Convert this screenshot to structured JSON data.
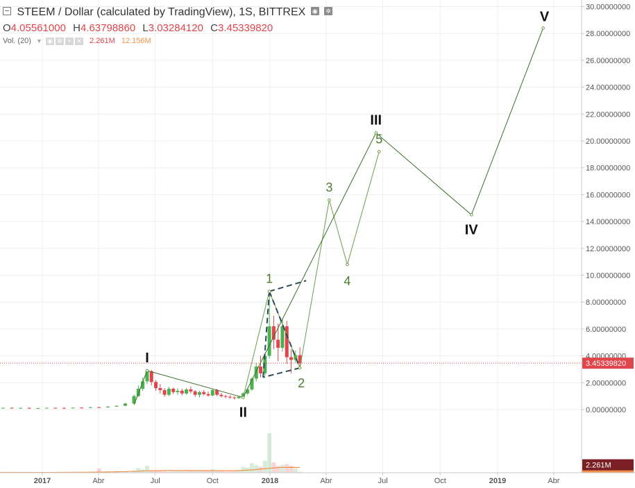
{
  "header": {
    "title": "STEEM / Dollar (calculated by TradingView), 1S, BITTREX",
    "ohlc": [
      {
        "label": "O",
        "value": "4.05561000"
      },
      {
        "label": "H",
        "value": "4.63798860"
      },
      {
        "label": "L",
        "value": "3.03284120"
      },
      {
        "label": "C",
        "value": "3.45339820"
      }
    ],
    "volume_indicator": {
      "label": "Vol. (20)",
      "value": "2.261M",
      "ma_value": "12.156M"
    }
  },
  "colors": {
    "up": "#4caf50",
    "down": "#e0454c",
    "wave_line": "#3c6e28",
    "wave_label_minor": "#4a7c2c",
    "wave_label_major": "#111111",
    "volume_ma": "#f0914a",
    "price_line": "#e0454c"
  },
  "chart_data": {
    "type": "candlestick",
    "title": "STEEM / Dollar (calculated by TradingView), 1S, BITTREX",
    "y_axis": {
      "min": -2.5,
      "max": 30,
      "ticks": [
        "0.00000000",
        "2.00000000",
        "4.00000000",
        "6.00000000",
        "8.00000000",
        "10.00000000",
        "12.00000000",
        "14.00000000",
        "16.00000000",
        "18.00000000",
        "20.00000000",
        "22.00000000",
        "24.00000000",
        "26.00000000",
        "28.00000000",
        "30.00000000"
      ]
    },
    "x_axis": {
      "ticks": [
        {
          "label": "2017",
          "date": "2017-01-01"
        },
        {
          "label": "Abr",
          "date": "2017-04-01"
        },
        {
          "label": "Jul",
          "date": "2017-07-01"
        },
        {
          "label": "Oct",
          "date": "2017-10-01"
        },
        {
          "label": "2018",
          "date": "2018-01-01"
        },
        {
          "label": "Abr",
          "date": "2018-04-01"
        },
        {
          "label": "Jul",
          "date": "2018-07-01"
        },
        {
          "label": "Oct",
          "date": "2018-10-01"
        },
        {
          "label": "2019",
          "date": "2019-01-01"
        },
        {
          "label": "Abr",
          "date": "2019-04-01"
        }
      ]
    },
    "last_price": {
      "value": 3.4533982,
      "label": "3.45339820"
    },
    "volume_badges": {
      "ma": "12.156M",
      "last": "2.261M"
    },
    "candles": [
      {
        "date": "2016-10-02",
        "o": 0.1,
        "h": 0.14,
        "l": 0.08,
        "c": 0.12
      },
      {
        "date": "2016-10-16",
        "o": 0.12,
        "h": 0.15,
        "l": 0.09,
        "c": 0.1
      },
      {
        "date": "2016-10-30",
        "o": 0.1,
        "h": 0.14,
        "l": 0.08,
        "c": 0.13
      },
      {
        "date": "2016-11-13",
        "o": 0.13,
        "h": 0.16,
        "l": 0.1,
        "c": 0.11
      },
      {
        "date": "2016-11-27",
        "o": 0.11,
        "h": 0.14,
        "l": 0.09,
        "c": 0.12
      },
      {
        "date": "2016-12-11",
        "o": 0.12,
        "h": 0.15,
        "l": 0.09,
        "c": 0.1
      },
      {
        "date": "2016-12-25",
        "o": 0.1,
        "h": 0.13,
        "l": 0.08,
        "c": 0.11
      },
      {
        "date": "2017-01-08",
        "o": 0.11,
        "h": 0.14,
        "l": 0.09,
        "c": 0.13
      },
      {
        "date": "2017-01-22",
        "o": 0.13,
        "h": 0.15,
        "l": 0.1,
        "c": 0.12
      },
      {
        "date": "2017-02-05",
        "o": 0.12,
        "h": 0.15,
        "l": 0.1,
        "c": 0.11
      },
      {
        "date": "2017-02-19",
        "o": 0.11,
        "h": 0.16,
        "l": 0.1,
        "c": 0.14
      },
      {
        "date": "2017-03-05",
        "o": 0.14,
        "h": 0.18,
        "l": 0.12,
        "c": 0.13
      },
      {
        "date": "2017-03-19",
        "o": 0.13,
        "h": 0.2,
        "l": 0.12,
        "c": 0.17
      },
      {
        "date": "2017-04-02",
        "o": 0.17,
        "h": 0.22,
        "l": 0.14,
        "c": 0.16
      },
      {
        "date": "2017-04-16",
        "o": 0.16,
        "h": 0.24,
        "l": 0.15,
        "c": 0.22
      },
      {
        "date": "2017-04-30",
        "o": 0.22,
        "h": 0.32,
        "l": 0.2,
        "c": 0.28
      },
      {
        "date": "2017-05-14",
        "o": 0.28,
        "h": 0.5,
        "l": 0.26,
        "c": 0.45
      },
      {
        "date": "2017-05-28",
        "o": 0.45,
        "h": 1.1,
        "l": 0.42,
        "c": 1.0
      },
      {
        "date": "2017-06-04",
        "o": 1.0,
        "h": 1.8,
        "l": 0.95,
        "c": 1.55
      },
      {
        "date": "2017-06-11",
        "o": 1.55,
        "h": 2.4,
        "l": 1.4,
        "c": 2.1
      },
      {
        "date": "2017-06-18",
        "o": 2.1,
        "h": 3.0,
        "l": 1.9,
        "c": 2.85
      },
      {
        "date": "2017-06-25",
        "o": 2.85,
        "h": 2.95,
        "l": 1.8,
        "c": 2.05
      },
      {
        "date": "2017-07-02",
        "o": 2.05,
        "h": 2.2,
        "l": 1.4,
        "c": 1.6
      },
      {
        "date": "2017-07-09",
        "o": 1.6,
        "h": 1.9,
        "l": 1.2,
        "c": 1.45
      },
      {
        "date": "2017-07-16",
        "o": 1.45,
        "h": 1.6,
        "l": 0.95,
        "c": 1.1
      },
      {
        "date": "2017-07-23",
        "o": 1.1,
        "h": 1.7,
        "l": 1.0,
        "c": 1.55
      },
      {
        "date": "2017-07-30",
        "o": 1.55,
        "h": 1.65,
        "l": 1.15,
        "c": 1.3
      },
      {
        "date": "2017-08-06",
        "o": 1.3,
        "h": 1.6,
        "l": 1.1,
        "c": 1.4
      },
      {
        "date": "2017-08-13",
        "o": 1.4,
        "h": 1.55,
        "l": 1.05,
        "c": 1.2
      },
      {
        "date": "2017-08-20",
        "o": 1.2,
        "h": 1.6,
        "l": 1.1,
        "c": 1.5
      },
      {
        "date": "2017-08-27",
        "o": 1.5,
        "h": 1.7,
        "l": 1.2,
        "c": 1.35
      },
      {
        "date": "2017-09-03",
        "o": 1.35,
        "h": 1.45,
        "l": 0.95,
        "c": 1.1
      },
      {
        "date": "2017-09-10",
        "o": 1.1,
        "h": 1.4,
        "l": 0.9,
        "c": 1.3
      },
      {
        "date": "2017-09-17",
        "o": 1.3,
        "h": 1.45,
        "l": 1.05,
        "c": 1.15
      },
      {
        "date": "2017-09-24",
        "o": 1.15,
        "h": 1.35,
        "l": 0.95,
        "c": 1.05
      },
      {
        "date": "2017-10-01",
        "o": 1.05,
        "h": 1.55,
        "l": 1.0,
        "c": 1.45
      },
      {
        "date": "2017-10-08",
        "o": 1.45,
        "h": 1.55,
        "l": 1.0,
        "c": 1.1
      },
      {
        "date": "2017-10-15",
        "o": 1.1,
        "h": 1.25,
        "l": 0.9,
        "c": 1.0
      },
      {
        "date": "2017-10-22",
        "o": 1.0,
        "h": 1.1,
        "l": 0.85,
        "c": 0.95
      },
      {
        "date": "2017-10-29",
        "o": 0.95,
        "h": 1.05,
        "l": 0.8,
        "c": 0.9
      },
      {
        "date": "2017-11-05",
        "o": 0.9,
        "h": 1.0,
        "l": 0.75,
        "c": 0.85
      },
      {
        "date": "2017-11-12",
        "o": 0.85,
        "h": 1.0,
        "l": 0.8,
        "c": 0.95
      },
      {
        "date": "2017-11-19",
        "o": 0.95,
        "h": 1.3,
        "l": 0.9,
        "c": 1.2
      },
      {
        "date": "2017-11-26",
        "o": 1.2,
        "h": 1.6,
        "l": 1.1,
        "c": 1.5
      },
      {
        "date": "2017-12-03",
        "o": 1.5,
        "h": 2.4,
        "l": 1.4,
        "c": 2.3
      },
      {
        "date": "2017-12-10",
        "o": 2.3,
        "h": 3.5,
        "l": 2.1,
        "c": 3.2
      },
      {
        "date": "2017-12-17",
        "o": 3.2,
        "h": 4.0,
        "l": 2.4,
        "c": 2.7
      },
      {
        "date": "2017-12-24",
        "o": 2.7,
        "h": 4.2,
        "l": 2.5,
        "c": 4.0
      },
      {
        "date": "2017-12-31",
        "o": 4.0,
        "h": 8.9,
        "l": 3.8,
        "c": 6.2
      },
      {
        "date": "2018-01-07",
        "o": 6.2,
        "h": 7.0,
        "l": 4.5,
        "c": 5.2
      },
      {
        "date": "2018-01-14",
        "o": 5.2,
        "h": 6.4,
        "l": 3.6,
        "c": 4.6
      },
      {
        "date": "2018-01-21",
        "o": 4.6,
        "h": 6.8,
        "l": 4.3,
        "c": 6.2
      },
      {
        "date": "2018-01-28",
        "o": 6.2,
        "h": 6.6,
        "l": 3.4,
        "c": 3.9
      },
      {
        "date": "2018-02-04",
        "o": 3.9,
        "h": 4.5,
        "l": 2.7,
        "c": 3.7
      },
      {
        "date": "2018-02-11",
        "o": 3.7,
        "h": 4.4,
        "l": 3.5,
        "c": 4.05
      },
      {
        "date": "2018-02-18",
        "o": 4.05,
        "h": 4.64,
        "l": 3.03,
        "c": 3.45
      }
    ],
    "volume": [
      {
        "date": "2016-10-02",
        "v": 0.8
      },
      {
        "date": "2016-10-16",
        "v": 0.6
      },
      {
        "date": "2016-10-30",
        "v": 0.7
      },
      {
        "date": "2016-11-13",
        "v": 0.5
      },
      {
        "date": "2016-11-27",
        "v": 0.6
      },
      {
        "date": "2016-12-11",
        "v": 0.5
      },
      {
        "date": "2016-12-25",
        "v": 0.6
      },
      {
        "date": "2017-01-08",
        "v": 0.8
      },
      {
        "date": "2017-01-22",
        "v": 0.7
      },
      {
        "date": "2017-02-05",
        "v": 0.6
      },
      {
        "date": "2017-02-19",
        "v": 0.9
      },
      {
        "date": "2017-03-05",
        "v": 1.2
      },
      {
        "date": "2017-03-19",
        "v": 1.4
      },
      {
        "date": "2017-04-02",
        "v": 9.5
      },
      {
        "date": "2017-04-16",
        "v": 3.0
      },
      {
        "date": "2017-04-30",
        "v": 4.0
      },
      {
        "date": "2017-05-14",
        "v": 3.5
      },
      {
        "date": "2017-05-28",
        "v": 5.0
      },
      {
        "date": "2017-06-04",
        "v": 11.0
      },
      {
        "date": "2017-06-11",
        "v": 7.5
      },
      {
        "date": "2017-06-18",
        "v": 16.0
      },
      {
        "date": "2017-06-25",
        "v": 6.0
      },
      {
        "date": "2017-07-02",
        "v": 5.0
      },
      {
        "date": "2017-07-09",
        "v": 4.0
      },
      {
        "date": "2017-07-16",
        "v": 3.5
      },
      {
        "date": "2017-07-23",
        "v": 3.0
      },
      {
        "date": "2017-07-30",
        "v": 4.0
      },
      {
        "date": "2017-08-06",
        "v": 5.0
      },
      {
        "date": "2017-08-13",
        "v": 4.0
      },
      {
        "date": "2017-08-20",
        "v": 6.0
      },
      {
        "date": "2017-08-27",
        "v": 4.5
      },
      {
        "date": "2017-09-03",
        "v": 3.5
      },
      {
        "date": "2017-09-10",
        "v": 4.5
      },
      {
        "date": "2017-09-17",
        "v": 4.0
      },
      {
        "date": "2017-09-24",
        "v": 5.0
      },
      {
        "date": "2017-10-01",
        "v": 8.0
      },
      {
        "date": "2017-10-08",
        "v": 3.5
      },
      {
        "date": "2017-10-15",
        "v": 3.5
      },
      {
        "date": "2017-10-22",
        "v": 2.5
      },
      {
        "date": "2017-10-29",
        "v": 3.0
      },
      {
        "date": "2017-11-05",
        "v": 3.0
      },
      {
        "date": "2017-11-12",
        "v": 4.0
      },
      {
        "date": "2017-11-19",
        "v": 14.0
      },
      {
        "date": "2017-11-26",
        "v": 12.0
      },
      {
        "date": "2017-12-03",
        "v": 22.0
      },
      {
        "date": "2017-12-10",
        "v": 18.0
      },
      {
        "date": "2017-12-17",
        "v": 14.0
      },
      {
        "date": "2017-12-24",
        "v": 28.0
      },
      {
        "date": "2017-12-31",
        "v": 92.0
      },
      {
        "date": "2018-01-07",
        "v": 24.0
      },
      {
        "date": "2018-01-14",
        "v": 16.0
      },
      {
        "date": "2018-01-21",
        "v": 18.0
      },
      {
        "date": "2018-01-28",
        "v": 20.0
      },
      {
        "date": "2018-02-04",
        "v": 16.0
      },
      {
        "date": "2018-02-11",
        "v": 10.0
      },
      {
        "date": "2018-02-18",
        "v": 2.261
      }
    ],
    "volume_ma": [
      {
        "date": "2016-10-02",
        "v": 0.8
      },
      {
        "date": "2017-01-08",
        "v": 0.7
      },
      {
        "date": "2017-04-02",
        "v": 1.5
      },
      {
        "date": "2017-05-14",
        "v": 2.5
      },
      {
        "date": "2017-06-18",
        "v": 4.5
      },
      {
        "date": "2017-07-23",
        "v": 5.2
      },
      {
        "date": "2017-08-27",
        "v": 5.0
      },
      {
        "date": "2017-10-01",
        "v": 4.8
      },
      {
        "date": "2017-11-05",
        "v": 4.6
      },
      {
        "date": "2017-12-03",
        "v": 6.5
      },
      {
        "date": "2017-12-24",
        "v": 9.5
      },
      {
        "date": "2018-01-14",
        "v": 12.0
      },
      {
        "date": "2018-02-04",
        "v": 12.5
      },
      {
        "date": "2018-02-18",
        "v": 12.156
      }
    ],
    "wave_major": [
      {
        "label": "I",
        "date": "2017-06-18",
        "y": 2.9
      },
      {
        "label": "II",
        "date": "2017-11-19",
        "y": 0.9
      },
      {
        "label": "III",
        "date": "2018-06-20",
        "y": 20.6
      },
      {
        "label": "IV",
        "date": "2018-11-20",
        "y": 14.5
      },
      {
        "label": "V",
        "date": "2019-03-15",
        "y": 28.4
      }
    ],
    "wave_minor": [
      {
        "label": "1",
        "date": "2017-12-31",
        "y": 8.8
      },
      {
        "label": "2",
        "date": "2018-02-18",
        "y": 3.1
      },
      {
        "label": "3",
        "date": "2018-04-06",
        "y": 15.6
      },
      {
        "label": "4",
        "date": "2018-05-05",
        "y": 10.8
      },
      {
        "label": "5",
        "date": "2018-06-25",
        "y": 19.2
      }
    ],
    "channel_dashed": [
      {
        "date": "2017-12-31",
        "y": 8.8
      },
      {
        "date": "2018-02-28",
        "y": 9.6
      },
      {
        "date": "2018-02-18",
        "y": 3.1
      },
      {
        "date": "2017-12-21",
        "y": 2.4
      }
    ]
  }
}
